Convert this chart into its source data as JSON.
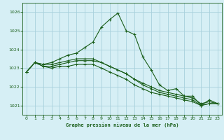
{
  "title": "Graphe pression niveau de la mer (hPa)",
  "background_color": "#d6eff5",
  "grid_color": "#a8d0dc",
  "line_color": "#1a5e1a",
  "text_color": "#1a5e1a",
  "xlim": [
    -0.5,
    23.5
  ],
  "ylim": [
    1020.5,
    1026.5
  ],
  "yticks": [
    1021,
    1022,
    1023,
    1024,
    1025,
    1026
  ],
  "xticks": [
    0,
    1,
    2,
    3,
    4,
    5,
    6,
    7,
    8,
    9,
    10,
    11,
    12,
    13,
    14,
    15,
    16,
    17,
    18,
    19,
    20,
    21,
    22,
    23
  ],
  "series": [
    {
      "x": [
        0,
        1,
        2,
        3,
        4,
        5,
        6,
        7,
        8,
        9,
        10,
        11,
        12,
        13,
        14,
        15,
        16,
        17,
        18,
        19,
        20,
        21,
        22,
        23
      ],
      "y": [
        1022.8,
        1023.3,
        1023.2,
        1023.3,
        1023.5,
        1023.7,
        1023.8,
        1024.1,
        1024.4,
        1025.2,
        1025.6,
        1025.95,
        1025.0,
        1024.8,
        1023.6,
        1022.9,
        1022.1,
        1021.8,
        1021.9,
        1021.5,
        1021.5,
        1021.0,
        1021.3,
        1021.1
      ]
    },
    {
      "x": [
        0,
        1,
        2,
        3,
        4,
        5,
        6,
        7,
        8,
        9,
        10,
        11,
        12,
        13,
        14,
        15,
        16,
        17,
        18,
        19,
        20,
        21,
        22,
        23
      ],
      "y": [
        1022.8,
        1023.3,
        1023.2,
        1023.2,
        1023.3,
        1023.4,
        1023.5,
        1023.5,
        1023.5,
        1023.3,
        1023.1,
        1022.9,
        1022.7,
        1022.4,
        1022.2,
        1022.0,
        1021.8,
        1021.7,
        1021.6,
        1021.5,
        1021.4,
        1021.1,
        1021.2,
        1021.1
      ]
    },
    {
      "x": [
        0,
        1,
        2,
        3,
        4,
        5,
        6,
        7,
        8,
        9,
        10,
        11,
        12,
        13,
        14,
        15,
        16,
        17,
        18,
        19,
        20,
        21,
        22,
        23
      ],
      "y": [
        1022.8,
        1023.3,
        1023.1,
        1023.1,
        1023.2,
        1023.3,
        1023.4,
        1023.4,
        1023.4,
        1023.3,
        1023.1,
        1022.9,
        1022.7,
        1022.4,
        1022.1,
        1021.9,
        1021.7,
        1021.6,
        1021.5,
        1021.4,
        1021.3,
        1021.0,
        1021.1,
        1021.1
      ]
    },
    {
      "x": [
        0,
        1,
        2,
        3,
        4,
        5,
        6,
        7,
        8,
        9,
        10,
        11,
        12,
        13,
        14,
        15,
        16,
        17,
        18,
        19,
        20,
        21,
        22,
        23
      ],
      "y": [
        1022.8,
        1023.3,
        1023.1,
        1023.0,
        1023.1,
        1023.1,
        1023.2,
        1023.2,
        1023.2,
        1023.0,
        1022.8,
        1022.6,
        1022.4,
        1022.1,
        1021.9,
        1021.7,
        1021.6,
        1021.5,
        1021.4,
        1021.3,
        1021.2,
        1021.0,
        1021.1,
        1021.1
      ]
    }
  ]
}
